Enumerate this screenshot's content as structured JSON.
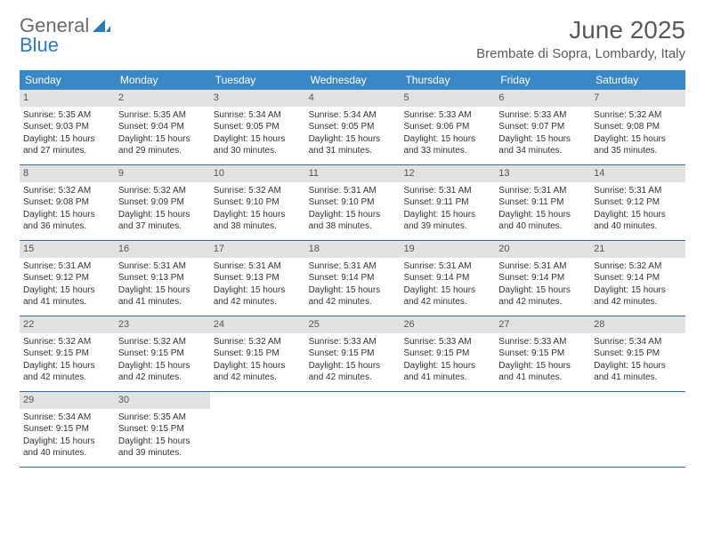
{
  "logo": {
    "text_gray": "General",
    "text_blue": "Blue"
  },
  "title": "June 2025",
  "location": "Brembate di Sopra, Lombardy, Italy",
  "colors": {
    "header_bg": "#3a87c8",
    "header_text": "#ffffff",
    "daynum_bg": "#e2e2e2",
    "row_border": "#3a6a9a",
    "title_color": "#5a5a5a",
    "logo_gray": "#6b6b6b",
    "logo_blue": "#2a7ac0"
  },
  "weekdays": [
    "Sunday",
    "Monday",
    "Tuesday",
    "Wednesday",
    "Thursday",
    "Friday",
    "Saturday"
  ],
  "weeks": [
    [
      {
        "day": "1",
        "sunrise": "Sunrise: 5:35 AM",
        "sunset": "Sunset: 9:03 PM",
        "daylight1": "Daylight: 15 hours",
        "daylight2": "and 27 minutes."
      },
      {
        "day": "2",
        "sunrise": "Sunrise: 5:35 AM",
        "sunset": "Sunset: 9:04 PM",
        "daylight1": "Daylight: 15 hours",
        "daylight2": "and 29 minutes."
      },
      {
        "day": "3",
        "sunrise": "Sunrise: 5:34 AM",
        "sunset": "Sunset: 9:05 PM",
        "daylight1": "Daylight: 15 hours",
        "daylight2": "and 30 minutes."
      },
      {
        "day": "4",
        "sunrise": "Sunrise: 5:34 AM",
        "sunset": "Sunset: 9:05 PM",
        "daylight1": "Daylight: 15 hours",
        "daylight2": "and 31 minutes."
      },
      {
        "day": "5",
        "sunrise": "Sunrise: 5:33 AM",
        "sunset": "Sunset: 9:06 PM",
        "daylight1": "Daylight: 15 hours",
        "daylight2": "and 33 minutes."
      },
      {
        "day": "6",
        "sunrise": "Sunrise: 5:33 AM",
        "sunset": "Sunset: 9:07 PM",
        "daylight1": "Daylight: 15 hours",
        "daylight2": "and 34 minutes."
      },
      {
        "day": "7",
        "sunrise": "Sunrise: 5:32 AM",
        "sunset": "Sunset: 9:08 PM",
        "daylight1": "Daylight: 15 hours",
        "daylight2": "and 35 minutes."
      }
    ],
    [
      {
        "day": "8",
        "sunrise": "Sunrise: 5:32 AM",
        "sunset": "Sunset: 9:08 PM",
        "daylight1": "Daylight: 15 hours",
        "daylight2": "and 36 minutes."
      },
      {
        "day": "9",
        "sunrise": "Sunrise: 5:32 AM",
        "sunset": "Sunset: 9:09 PM",
        "daylight1": "Daylight: 15 hours",
        "daylight2": "and 37 minutes."
      },
      {
        "day": "10",
        "sunrise": "Sunrise: 5:32 AM",
        "sunset": "Sunset: 9:10 PM",
        "daylight1": "Daylight: 15 hours",
        "daylight2": "and 38 minutes."
      },
      {
        "day": "11",
        "sunrise": "Sunrise: 5:31 AM",
        "sunset": "Sunset: 9:10 PM",
        "daylight1": "Daylight: 15 hours",
        "daylight2": "and 38 minutes."
      },
      {
        "day": "12",
        "sunrise": "Sunrise: 5:31 AM",
        "sunset": "Sunset: 9:11 PM",
        "daylight1": "Daylight: 15 hours",
        "daylight2": "and 39 minutes."
      },
      {
        "day": "13",
        "sunrise": "Sunrise: 5:31 AM",
        "sunset": "Sunset: 9:11 PM",
        "daylight1": "Daylight: 15 hours",
        "daylight2": "and 40 minutes."
      },
      {
        "day": "14",
        "sunrise": "Sunrise: 5:31 AM",
        "sunset": "Sunset: 9:12 PM",
        "daylight1": "Daylight: 15 hours",
        "daylight2": "and 40 minutes."
      }
    ],
    [
      {
        "day": "15",
        "sunrise": "Sunrise: 5:31 AM",
        "sunset": "Sunset: 9:12 PM",
        "daylight1": "Daylight: 15 hours",
        "daylight2": "and 41 minutes."
      },
      {
        "day": "16",
        "sunrise": "Sunrise: 5:31 AM",
        "sunset": "Sunset: 9:13 PM",
        "daylight1": "Daylight: 15 hours",
        "daylight2": "and 41 minutes."
      },
      {
        "day": "17",
        "sunrise": "Sunrise: 5:31 AM",
        "sunset": "Sunset: 9:13 PM",
        "daylight1": "Daylight: 15 hours",
        "daylight2": "and 42 minutes."
      },
      {
        "day": "18",
        "sunrise": "Sunrise: 5:31 AM",
        "sunset": "Sunset: 9:14 PM",
        "daylight1": "Daylight: 15 hours",
        "daylight2": "and 42 minutes."
      },
      {
        "day": "19",
        "sunrise": "Sunrise: 5:31 AM",
        "sunset": "Sunset: 9:14 PM",
        "daylight1": "Daylight: 15 hours",
        "daylight2": "and 42 minutes."
      },
      {
        "day": "20",
        "sunrise": "Sunrise: 5:31 AM",
        "sunset": "Sunset: 9:14 PM",
        "daylight1": "Daylight: 15 hours",
        "daylight2": "and 42 minutes."
      },
      {
        "day": "21",
        "sunrise": "Sunrise: 5:32 AM",
        "sunset": "Sunset: 9:14 PM",
        "daylight1": "Daylight: 15 hours",
        "daylight2": "and 42 minutes."
      }
    ],
    [
      {
        "day": "22",
        "sunrise": "Sunrise: 5:32 AM",
        "sunset": "Sunset: 9:15 PM",
        "daylight1": "Daylight: 15 hours",
        "daylight2": "and 42 minutes."
      },
      {
        "day": "23",
        "sunrise": "Sunrise: 5:32 AM",
        "sunset": "Sunset: 9:15 PM",
        "daylight1": "Daylight: 15 hours",
        "daylight2": "and 42 minutes."
      },
      {
        "day": "24",
        "sunrise": "Sunrise: 5:32 AM",
        "sunset": "Sunset: 9:15 PM",
        "daylight1": "Daylight: 15 hours",
        "daylight2": "and 42 minutes."
      },
      {
        "day": "25",
        "sunrise": "Sunrise: 5:33 AM",
        "sunset": "Sunset: 9:15 PM",
        "daylight1": "Daylight: 15 hours",
        "daylight2": "and 42 minutes."
      },
      {
        "day": "26",
        "sunrise": "Sunrise: 5:33 AM",
        "sunset": "Sunset: 9:15 PM",
        "daylight1": "Daylight: 15 hours",
        "daylight2": "and 41 minutes."
      },
      {
        "day": "27",
        "sunrise": "Sunrise: 5:33 AM",
        "sunset": "Sunset: 9:15 PM",
        "daylight1": "Daylight: 15 hours",
        "daylight2": "and 41 minutes."
      },
      {
        "day": "28",
        "sunrise": "Sunrise: 5:34 AM",
        "sunset": "Sunset: 9:15 PM",
        "daylight1": "Daylight: 15 hours",
        "daylight2": "and 41 minutes."
      }
    ],
    [
      {
        "day": "29",
        "sunrise": "Sunrise: 5:34 AM",
        "sunset": "Sunset: 9:15 PM",
        "daylight1": "Daylight: 15 hours",
        "daylight2": "and 40 minutes."
      },
      {
        "day": "30",
        "sunrise": "Sunrise: 5:35 AM",
        "sunset": "Sunset: 9:15 PM",
        "daylight1": "Daylight: 15 hours",
        "daylight2": "and 39 minutes."
      },
      {
        "empty": true
      },
      {
        "empty": true
      },
      {
        "empty": true
      },
      {
        "empty": true
      },
      {
        "empty": true
      }
    ]
  ]
}
